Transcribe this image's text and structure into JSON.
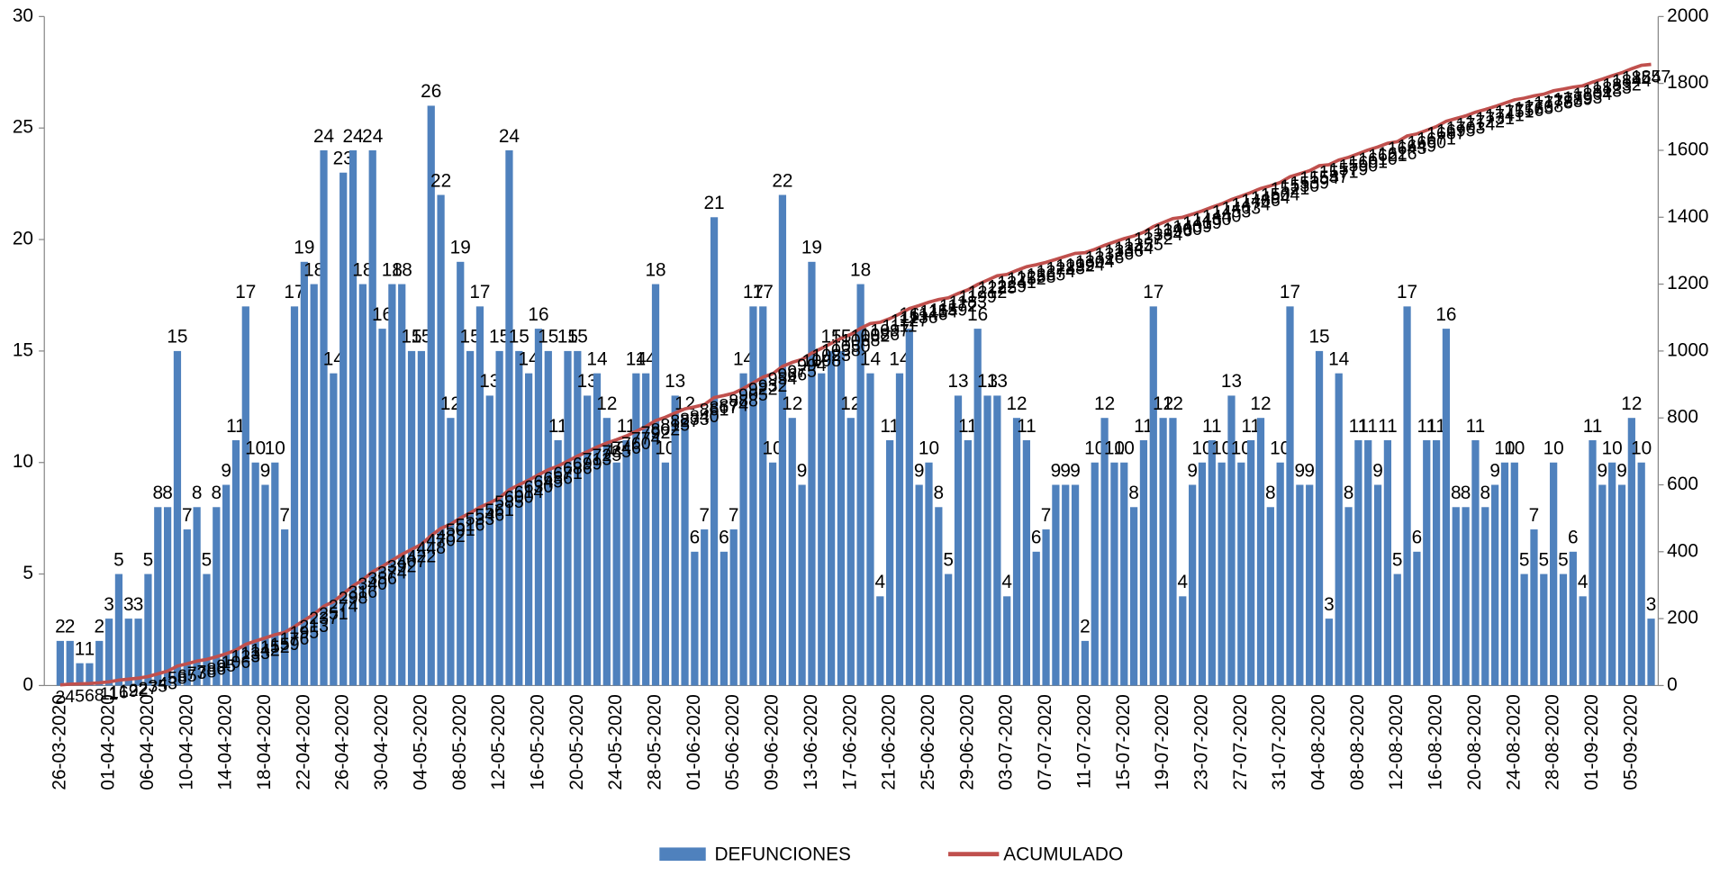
{
  "chart_data": {
    "type": "bar",
    "categories": [
      "26-03-2020",
      null,
      null,
      null,
      null,
      "01-04-2020",
      null,
      null,
      null,
      "06-04-2020",
      null,
      null,
      null,
      "10-04-2020",
      null,
      null,
      null,
      "14-04-2020",
      null,
      null,
      null,
      "18-04-2020",
      null,
      null,
      null,
      "22-04-2020",
      null,
      null,
      null,
      "26-04-2020",
      null,
      null,
      null,
      "30-04-2020",
      null,
      null,
      null,
      "04-05-2020",
      null,
      null,
      null,
      "08-05-2020",
      null,
      null,
      null,
      "12-05-2020",
      null,
      null,
      null,
      "16-05-2020",
      null,
      null,
      null,
      "20-05-2020",
      null,
      null,
      null,
      "24-05-2020",
      null,
      null,
      null,
      "28-05-2020",
      null,
      null,
      null,
      "01-06-2020",
      null,
      null,
      null,
      "05-06-2020",
      null,
      null,
      null,
      "09-06-2020",
      null,
      null,
      null,
      "13-06-2020",
      null,
      null,
      null,
      "17-06-2020",
      null,
      null,
      null,
      "21-06-2020",
      null,
      null,
      null,
      "25-06-2020",
      null,
      null,
      null,
      "29-06-2020",
      null,
      null,
      null,
      "03-07-2020",
      null,
      null,
      null,
      "07-07-2020",
      null,
      null,
      null,
      "11-07-2020",
      null,
      null,
      null,
      "15-07-2020",
      null,
      null,
      null,
      "19-07-2020",
      null,
      null,
      null,
      "23-07-2020",
      null,
      null,
      null,
      "27-07-2020",
      null,
      null,
      null,
      "31-07-2020",
      null,
      null,
      null,
      "04-08-2020",
      null,
      null,
      null,
      "08-08-2020",
      null,
      null,
      null,
      "12-08-2020",
      null,
      null,
      null,
      "16-08-2020",
      null,
      null,
      null,
      "20-08-2020",
      null,
      null,
      null,
      "24-08-2020",
      null,
      null,
      null,
      "28-08-2020",
      null,
      null,
      null,
      "01-09-2020",
      null,
      null,
      null,
      "05-09-2020",
      null,
      null
    ],
    "series": [
      {
        "name": "DEFUNCIONES",
        "type": "bar",
        "color": "#4f81bd",
        "values": [
          2,
          2,
          1,
          1,
          2,
          3,
          5,
          3,
          3,
          5,
          8,
          8,
          15,
          7,
          8,
          5,
          8,
          9,
          11,
          17,
          10,
          9,
          10,
          7,
          17,
          19,
          18,
          24,
          14,
          23,
          24,
          18,
          24,
          16,
          18,
          18,
          15,
          15,
          26,
          22,
          12,
          19,
          15,
          17,
          13,
          15,
          24,
          15,
          14,
          16,
          15,
          11,
          15,
          15,
          13,
          14,
          12,
          10,
          11,
          14,
          14,
          18,
          10,
          13,
          12,
          6,
          7,
          21,
          6,
          7,
          14,
          17,
          17,
          10,
          22,
          12,
          9,
          19,
          14,
          15,
          15,
          12,
          18,
          14,
          4,
          11,
          14,
          16,
          9,
          10,
          8,
          5,
          13,
          11,
          16,
          13,
          13,
          4,
          12,
          11,
          6,
          7,
          9,
          9,
          9,
          2,
          10,
          12,
          10,
          10,
          8,
          11,
          17,
          12,
          12,
          4,
          9,
          10,
          11,
          10,
          13,
          10,
          11,
          12,
          8,
          10,
          17,
          9,
          9,
          15,
          3,
          14,
          8,
          11,
          11,
          9,
          11,
          5,
          17,
          6,
          11,
          11,
          16,
          8,
          8,
          11,
          8,
          9,
          10,
          10,
          5,
          7,
          5,
          10,
          5,
          6,
          4,
          11,
          9,
          10,
          9,
          12,
          10,
          3
        ]
      },
      {
        "name": "ACUMULADO",
        "type": "line",
        "axis": "y2",
        "color": "#c0504d",
        "values": [
          2,
          4,
          5,
          6,
          8,
          11,
          16,
          19,
          22,
          27,
          35,
          43,
          58,
          65,
          73,
          78,
          86,
          95,
          106,
          123,
          133,
          142,
          152,
          159,
          176,
          195,
          213,
          237,
          251,
          274,
          298,
          316,
          340,
          356,
          374,
          392,
          407,
          422,
          448,
          470,
          482,
          501,
          516,
          533,
          546,
          561,
          585,
          600,
          614,
          630,
          645,
          656,
          671,
          686,
          699,
          713,
          725,
          735,
          746,
          760,
          774,
          792,
          802,
          815,
          827,
          833,
          840,
          861,
          867,
          874,
          888,
          905,
          922,
          932,
          954,
          966,
          975,
          994,
          1008,
          1023,
          1038,
          1050,
          1068,
          1082,
          1086,
          1097,
          1111,
          1127,
          1136,
          1146,
          1154,
          1159,
          1172,
          1183,
          1199,
          1212,
          1225,
          1229,
          1241,
          1252,
          1258,
          1265,
          1274,
          1283,
          1292,
          1294,
          1304,
          1316,
          1326,
          1336,
          1344,
          1355,
          1372,
          1384,
          1396,
          1400,
          1409,
          1419,
          1430,
          1440,
          1453,
          1463,
          1474,
          1486,
          1494,
          1504,
          1521,
          1530,
          1539,
          1554,
          1557,
          1571,
          1579,
          1590,
          1601,
          1610,
          1621,
          1626,
          1643,
          1649,
          1660,
          1671,
          1687,
          1695,
          1703,
          1714,
          1722,
          1731,
          1741,
          1751,
          1756,
          1763,
          1768,
          1778,
          1783,
          1789,
          1793,
          1804,
          1813,
          1823,
          1832,
          1844,
          1854,
          1857
        ]
      }
    ],
    "ylim": [
      0,
      30
    ],
    "yticks": [
      0,
      5,
      10,
      15,
      20,
      25,
      30
    ],
    "y2lim": [
      0,
      2000
    ],
    "y2ticks": [
      0,
      200,
      400,
      600,
      800,
      1000,
      1200,
      1400,
      1600,
      1800,
      2000
    ],
    "legend": "bottom"
  }
}
